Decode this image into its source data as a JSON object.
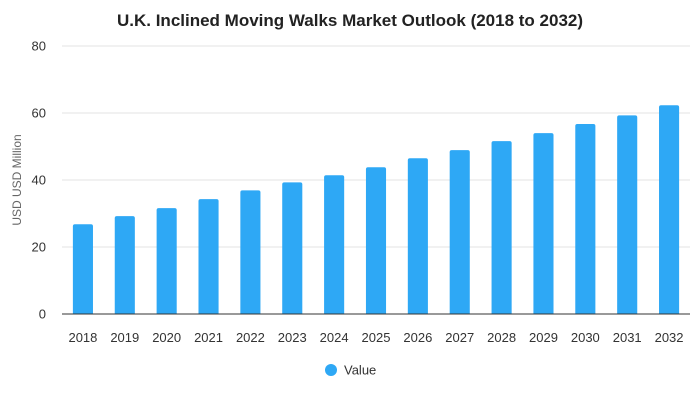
{
  "chart_data": {
    "type": "bar",
    "title": "U.K. Inclined Moving Walks Market Outlook (2018 to 2032)",
    "xlabel": "",
    "ylabel": "USD USD Million",
    "categories": [
      "2018",
      "2019",
      "2020",
      "2021",
      "2022",
      "2023",
      "2024",
      "2025",
      "2026",
      "2027",
      "2028",
      "2029",
      "2030",
      "2031",
      "2032"
    ],
    "series": [
      {
        "name": "Value",
        "color": "#2ea8f5",
        "values": [
          26.8,
          29.2,
          31.6,
          34.3,
          36.9,
          39.3,
          41.4,
          43.8,
          46.5,
          48.9,
          51.6,
          54.0,
          56.7,
          59.3,
          62.3
        ]
      }
    ],
    "ylim": [
      0,
      80
    ],
    "yticks": [
      0,
      20,
      40,
      60,
      80
    ],
    "grid": true,
    "legend": "bottom-center"
  }
}
